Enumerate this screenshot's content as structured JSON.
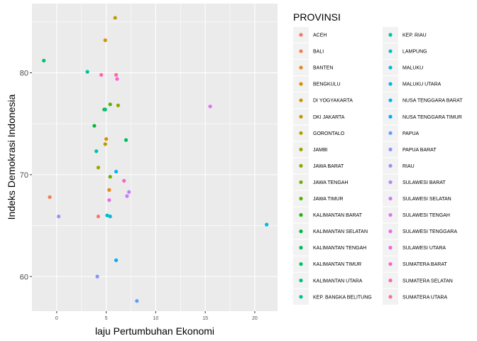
{
  "chart_data": {
    "type": "scatter",
    "title": "",
    "xlabel": "laju Pertumbuhan Ekonomi",
    "ylabel": "Indeks Demokrasi Indonesia",
    "xlim": [
      -2.5,
      22.3
    ],
    "ylim": [
      56.6,
      86.8
    ],
    "x_ticks": [
      0,
      5,
      10,
      15,
      20
    ],
    "y_ticks": [
      60,
      70,
      80
    ],
    "grid": true,
    "legend_title": "PROVINSI",
    "legend_position": "right",
    "series": [
      {
        "name": "ACEH",
        "color": "#F8766D",
        "x": 4.2,
        "y": 65.9
      },
      {
        "name": "BALI",
        "color": "#F27D52",
        "x": -0.7,
        "y": 67.8
      },
      {
        "name": "BANTEN",
        "color": "#E7861B",
        "x": 5.3,
        "y": 68.5
      },
      {
        "name": "BENGKULU",
        "color": "#DB8E00",
        "x": 5.0,
        "y": 73.5
      },
      {
        "name": "DI YOGYAKARTA",
        "color": "#CD9600",
        "x": 4.9,
        "y": 83.2
      },
      {
        "name": "DKI JAKARTA",
        "color": "#BE9C00",
        "x": 5.9,
        "y": 85.4
      },
      {
        "name": "GORONTALO",
        "color": "#AEA200",
        "x": 4.9,
        "y": 73.0
      },
      {
        "name": "JAMBI",
        "color": "#9CA700",
        "x": 4.2,
        "y": 70.7
      },
      {
        "name": "JAWA BARAT",
        "color": "#88AC00",
        "x": 6.2,
        "y": 76.8
      },
      {
        "name": "JAWA TENGAH",
        "color": "#70B000",
        "x": 5.4,
        "y": 69.8
      },
      {
        "name": "JAWA TIMUR",
        "color": "#53B400",
        "x": 5.4,
        "y": 76.9
      },
      {
        "name": "KALIMANTAN BARAT",
        "color": "#1FB700",
        "x": 4.8,
        "y": 76.4
      },
      {
        "name": "KALIMANTAN SELATAN",
        "color": "#00BA38",
        "x": 3.8,
        "y": 74.8
      },
      {
        "name": "KALIMANTAN TENGAH",
        "color": "#00BC56",
        "x": 7.0,
        "y": 73.4
      },
      {
        "name": "KALIMANTAN TIMUR",
        "color": "#00BE6C",
        "x": -1.3,
        "y": 81.2
      },
      {
        "name": "KALIMANTAN UTARA",
        "color": "#00C080",
        "x": 4.9,
        "y": 76.4
      },
      {
        "name": "KEP. BANGKA BELITUNG",
        "color": "#00C192",
        "x": 3.1,
        "y": 80.1
      },
      {
        "name": "KEP. RIAU",
        "color": "#00C0B0",
        "x": 4.0,
        "y": 72.3
      },
      {
        "name": "LAMPUNG",
        "color": "#00BFC4",
        "x": 5.1,
        "y": 66.0
      },
      {
        "name": "MALUKU",
        "color": "#00BCD8",
        "x": 5.4,
        "y": 65.9
      },
      {
        "name": "MALUKU UTARA",
        "color": "#00B8E7",
        "x": 21.2,
        "y": 65.1
      },
      {
        "name": "NUSA TENGGARA BARAT",
        "color": "#00B4F0",
        "x": 6.0,
        "y": 70.3
      },
      {
        "name": "NUSA TENGGARA TIMUR",
        "color": "#00ADFA",
        "x": 6.0,
        "y": 61.6
      },
      {
        "name": "PAPUA",
        "color": "#619CFF",
        "x": 8.1,
        "y": 57.6
      },
      {
        "name": "PAPUA BARAT",
        "color": "#8B93FF",
        "x": 4.1,
        "y": 60.0
      },
      {
        "name": "RIAU",
        "color": "#A58AFF",
        "x": 0.2,
        "y": 65.9
      },
      {
        "name": "SULAWESI BARAT",
        "color": "#BB81FF",
        "x": 7.3,
        "y": 68.3
      },
      {
        "name": "SULAWESI SELATAN",
        "color": "#D177FF",
        "x": 7.1,
        "y": 67.9
      },
      {
        "name": "SULAWESI TENGAH",
        "color": "#DF70F8",
        "x": 15.5,
        "y": 76.7
      },
      {
        "name": "SULAWESI TENGGARA",
        "color": "#EC69EF",
        "x": 5.3,
        "y": 67.5
      },
      {
        "name": "SULAWESI UTARA",
        "color": "#F763E0",
        "x": 6.1,
        "y": 79.4
      },
      {
        "name": "SUMATERA BARAT",
        "color": "#FF61C9",
        "x": 6.8,
        "y": 69.4
      },
      {
        "name": "SUMATERA SELATAN",
        "color": "#FF65AE",
        "x": 4.5,
        "y": 79.8
      },
      {
        "name": "SUMATERA UTARA",
        "color": "#FF6C91",
        "x": 6.0,
        "y": 79.8
      }
    ]
  }
}
